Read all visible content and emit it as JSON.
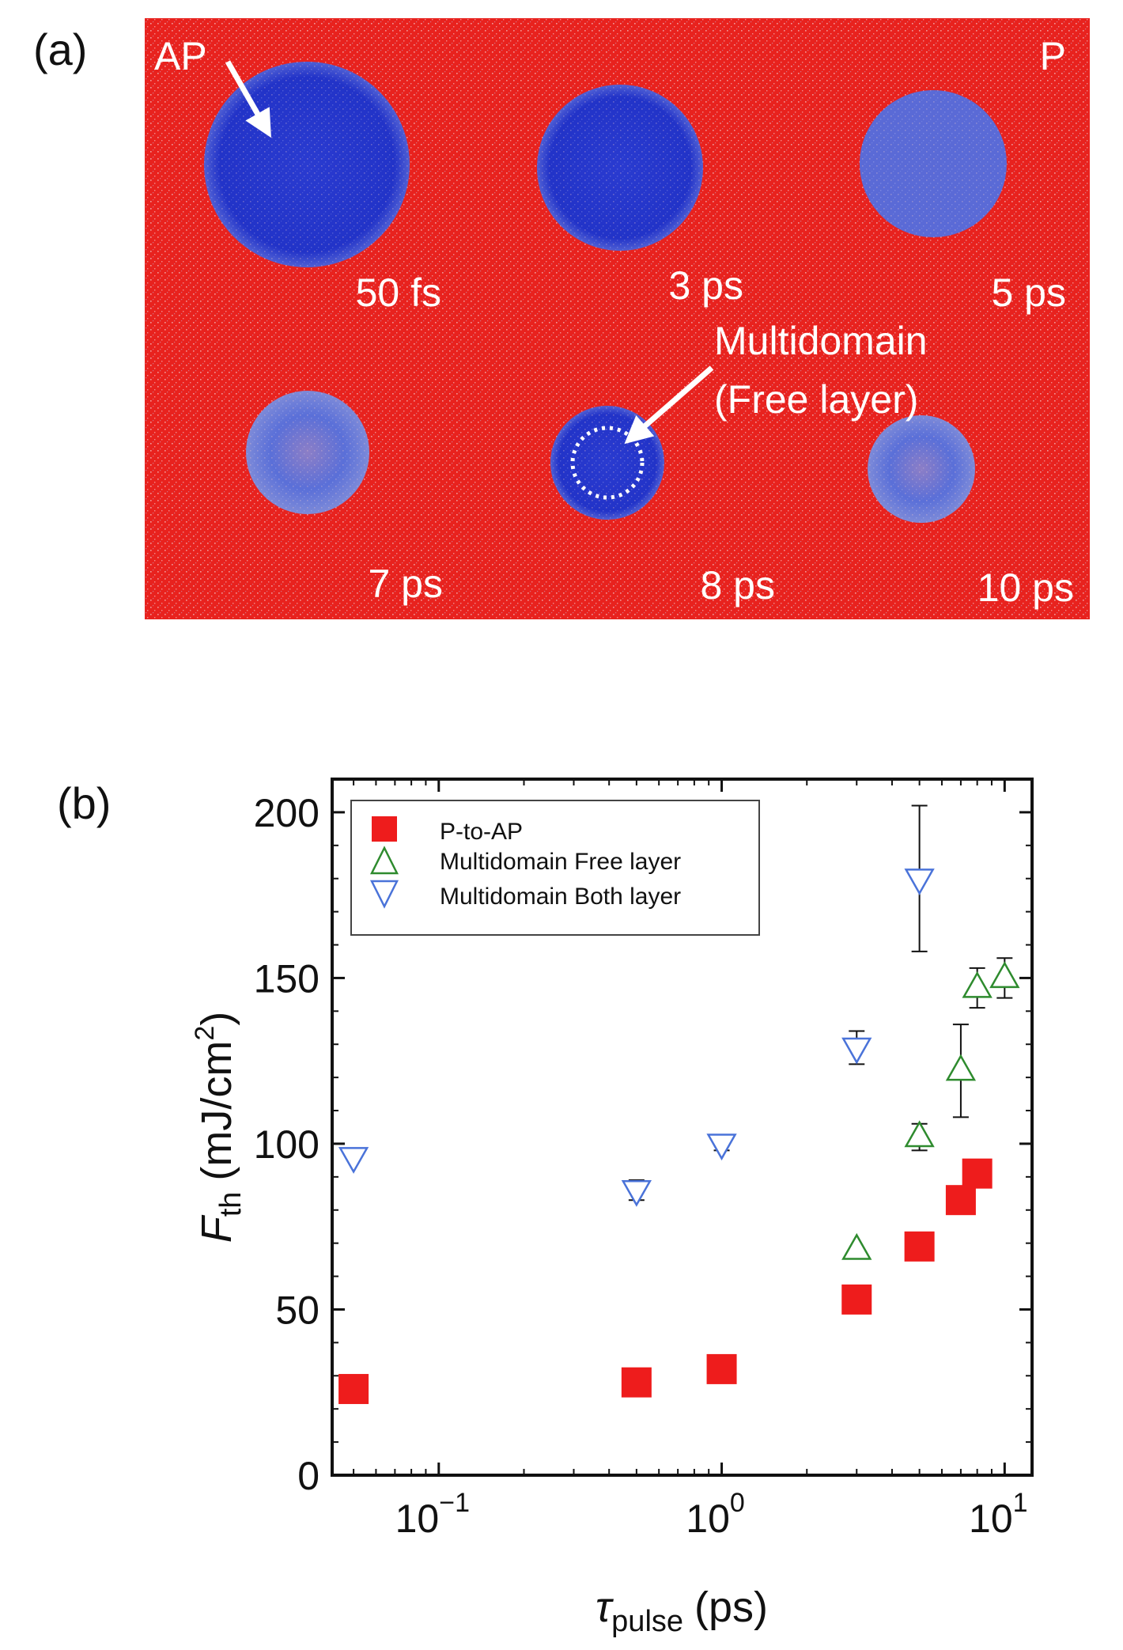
{
  "panel_a": {
    "label": "(a)",
    "ap_label": "AP",
    "p_label": "P",
    "multidomain_line1": "Multidomain",
    "multidomain_line2": "(Free layer)",
    "frames": [
      "50 fs",
      "3 ps",
      "5 ps",
      "7 ps",
      "8 ps",
      "10 ps"
    ],
    "colors": {
      "background": "#e8221e",
      "domain": "#2233c8",
      "domain_faded": "#6f7fd6"
    }
  },
  "panel_b": {
    "label": "(b)"
  },
  "chart_data": {
    "type": "scatter",
    "xscale": "log",
    "xlim": [
      0.042,
      12.5
    ],
    "ylim": [
      0,
      210
    ],
    "xlabel_symbol": "τ",
    "xlabel_sub": "pulse",
    "xlabel_unit": "(ps)",
    "ylabel_symbol": "F",
    "ylabel_sub": "th",
    "ylabel_unit_pre": "(mJ/cm",
    "ylabel_unit_sup": "2",
    "ylabel_unit_post": ")",
    "yticks": [
      0,
      50,
      100,
      150,
      200
    ],
    "xtick_labels": [
      {
        "value": 0.1,
        "base": "10",
        "exp": "−1"
      },
      {
        "value": 1,
        "base": "10",
        "exp": "0"
      },
      {
        "value": 10,
        "base": "10",
        "exp": "1"
      }
    ],
    "legend_position": "top-left",
    "series": [
      {
        "name": "P-to-AP",
        "marker": "square",
        "color": "#ee1c1c",
        "x": [
          0.05,
          0.5,
          1,
          3,
          5,
          7,
          8
        ],
        "y": [
          26,
          28,
          32,
          53,
          69,
          83,
          91
        ]
      },
      {
        "name": "Multidomain Free layer",
        "marker": "triangle-up",
        "color": "#2e8b2e",
        "x": [
          3,
          5,
          7,
          8,
          10
        ],
        "y": [
          68,
          102,
          122,
          147,
          150
        ],
        "err": [
          0,
          4,
          14,
          6,
          6
        ]
      },
      {
        "name": "Multidomain Both layer",
        "marker": "triangle-down",
        "color": "#4a73d9",
        "x": [
          0.05,
          0.5,
          1,
          3,
          5
        ],
        "y": [
          96,
          86,
          100,
          129,
          180
        ],
        "err": [
          0,
          3,
          2,
          5,
          22
        ]
      }
    ]
  }
}
